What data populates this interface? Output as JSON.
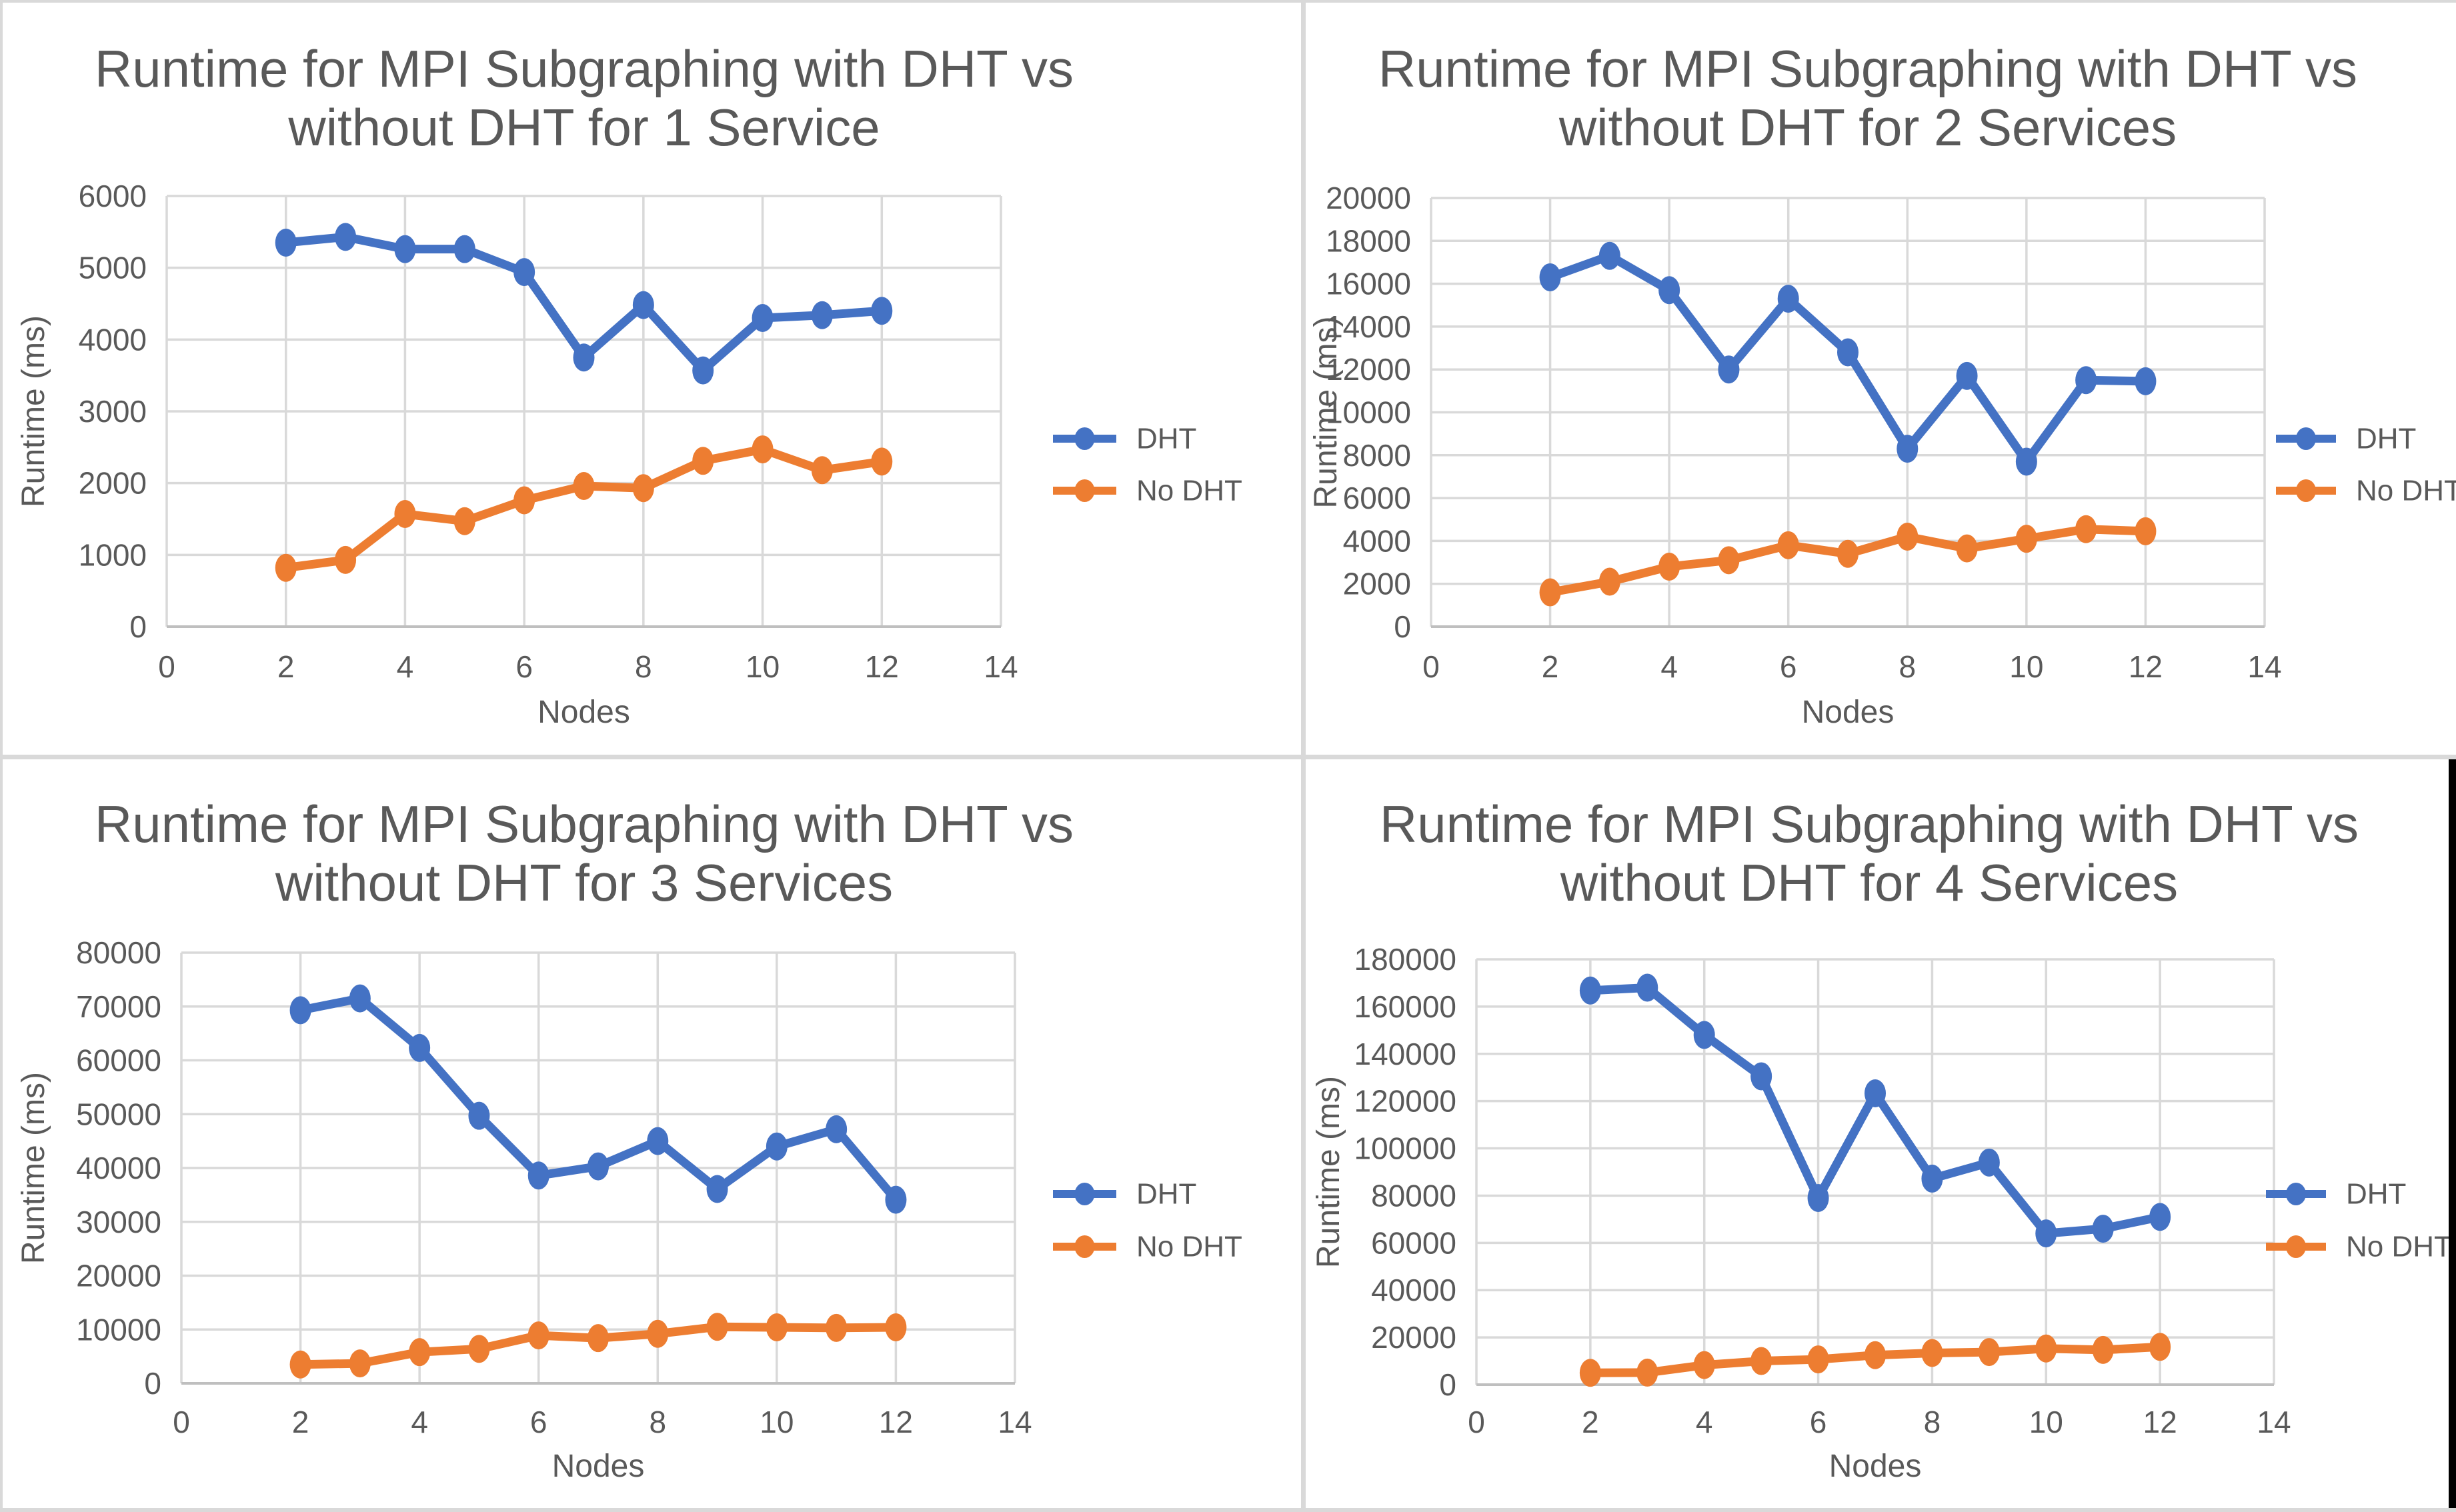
{
  "window": {
    "background": "#d9d9d9",
    "panel_background": "#ffffff",
    "edge_strip_color": "#000000"
  },
  "palette": {
    "dht_blue": "#4472C4",
    "no_dht_orange": "#ED7D31",
    "gridline_gray": "#D9D9D9",
    "axis_gray": "#BFBFBF",
    "text_gray": "#595959"
  },
  "legend": {
    "items": [
      {
        "label": "DHT",
        "color": "#4472C4"
      },
      {
        "label": "No DHT",
        "color": "#ED7D31"
      }
    ]
  },
  "chart_data": [
    {
      "type": "line",
      "title": "Runtime for MPI Subgraphing with DHT vs without DHT for 1 Service",
      "title_lines": [
        "Runtime for MPI Subgraphing with DHT vs",
        "without DHT for 1 Service"
      ],
      "xlabel": "Nodes",
      "ylabel": "Runtime (ms)",
      "xlim": [
        0,
        14
      ],
      "ylim": [
        0,
        6000
      ],
      "x_ticks": [
        0,
        2,
        4,
        6,
        8,
        10,
        12,
        14
      ],
      "y_ticks": [
        0,
        1000,
        2000,
        3000,
        4000,
        5000,
        6000
      ],
      "grid": true,
      "legend_position": "right",
      "x": [
        2,
        3,
        4,
        5,
        6,
        7,
        8,
        9,
        10,
        11,
        12
      ],
      "series": [
        {
          "name": "DHT",
          "color": "#4472C4",
          "values": [
            5350,
            5430,
            5260,
            5260,
            4940,
            3750,
            4480,
            3570,
            4300,
            4340,
            4400
          ]
        },
        {
          "name": "No DHT",
          "color": "#ED7D31",
          "values": [
            820,
            930,
            1570,
            1470,
            1760,
            1960,
            1930,
            2310,
            2470,
            2180,
            2300
          ]
        }
      ]
    },
    {
      "type": "line",
      "title": "Runtime for MPI Subgraphing with DHT vs without DHT for 2 Services",
      "title_lines": [
        "Runtime for MPI Subgraphing with DHT vs",
        "without DHT for 2 Services"
      ],
      "xlabel": "Nodes",
      "ylabel": "Runtime (ms)",
      "xlim": [
        0,
        14
      ],
      "ylim": [
        0,
        20000
      ],
      "x_ticks": [
        0,
        2,
        4,
        6,
        8,
        10,
        12,
        14
      ],
      "y_ticks": [
        0,
        2000,
        4000,
        6000,
        8000,
        10000,
        12000,
        14000,
        16000,
        18000,
        20000
      ],
      "grid": true,
      "legend_position": "right",
      "x": [
        2,
        3,
        4,
        5,
        6,
        7,
        8,
        9,
        10,
        11,
        12
      ],
      "series": [
        {
          "name": "DHT",
          "color": "#4472C4",
          "values": [
            16300,
            17300,
            15700,
            12000,
            15300,
            12800,
            8300,
            11700,
            7700,
            11500,
            11450
          ]
        },
        {
          "name": "No DHT",
          "color": "#ED7D31",
          "values": [
            1600,
            2100,
            2800,
            3100,
            3800,
            3400,
            4200,
            3650,
            4100,
            4550,
            4450
          ]
        }
      ]
    },
    {
      "type": "line",
      "title": "Runtime for MPI Subgraphing with DHT vs without DHT for 3 Services",
      "title_lines": [
        "Runtime for MPI Subgraphing with DHT vs",
        "without DHT for 3 Services"
      ],
      "xlabel": "Nodes",
      "ylabel": "Runtime (ms)",
      "xlim": [
        0,
        14
      ],
      "ylim": [
        0,
        80000
      ],
      "x_ticks": [
        0,
        2,
        4,
        6,
        8,
        10,
        12,
        14
      ],
      "y_ticks": [
        0,
        10000,
        20000,
        30000,
        40000,
        50000,
        60000,
        70000,
        80000
      ],
      "grid": true,
      "legend_position": "right",
      "x": [
        2,
        3,
        4,
        5,
        6,
        7,
        8,
        9,
        10,
        11,
        12
      ],
      "series": [
        {
          "name": "DHT",
          "color": "#4472C4",
          "values": [
            69300,
            71500,
            62300,
            49700,
            38600,
            40300,
            45000,
            36100,
            44000,
            47200,
            34100
          ]
        },
        {
          "name": "No DHT",
          "color": "#ED7D31",
          "values": [
            3500,
            3700,
            5800,
            6400,
            8900,
            8400,
            9200,
            10500,
            10400,
            10300,
            10400
          ]
        }
      ]
    },
    {
      "type": "line",
      "title": "Runtime for MPI Subgraphing with DHT vs without DHT for 4 Services",
      "title_lines": [
        "Runtime for MPI Subgraphing with DHT vs",
        "without DHT for 4 Services"
      ],
      "xlabel": "Nodes",
      "ylabel": "Runtime (ms)",
      "xlim": [
        0,
        14
      ],
      "ylim": [
        0,
        180000
      ],
      "x_ticks": [
        0,
        2,
        4,
        6,
        8,
        10,
        12,
        14
      ],
      "y_ticks": [
        0,
        20000,
        40000,
        60000,
        80000,
        100000,
        120000,
        140000,
        160000,
        180000
      ],
      "grid": true,
      "legend_position": "right",
      "x": [
        2,
        3,
        4,
        5,
        6,
        7,
        8,
        9,
        10,
        11,
        12
      ],
      "series": [
        {
          "name": "DHT",
          "color": "#4472C4",
          "values": [
            166800,
            168000,
            148000,
            130500,
            79000,
            123300,
            87200,
            94000,
            64000,
            66000,
            71000
          ]
        },
        {
          "name": "No DHT",
          "color": "#ED7D31",
          "values": [
            5000,
            5100,
            8300,
            10000,
            10700,
            12500,
            13400,
            13800,
            15300,
            14700,
            16000
          ]
        }
      ]
    }
  ]
}
